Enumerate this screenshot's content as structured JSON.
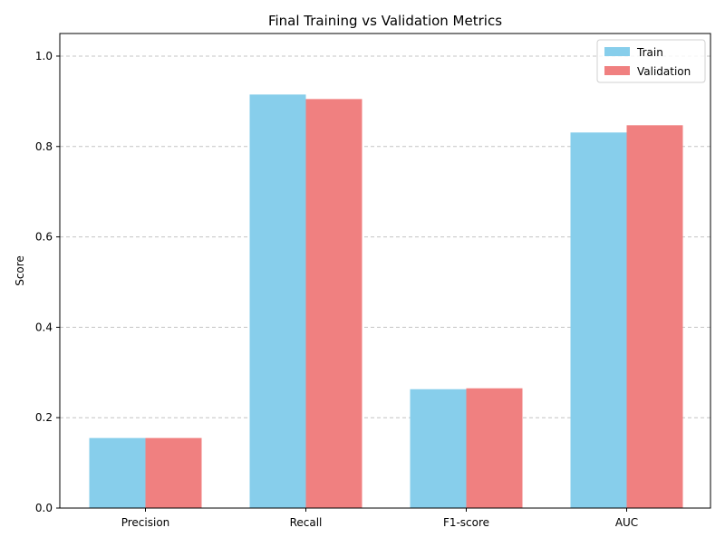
{
  "chart_data": {
    "type": "bar",
    "title": "Final Training vs Validation Metrics",
    "xlabel": "",
    "ylabel": "Score",
    "categories": [
      "Precision",
      "Recall",
      "F1-score",
      "AUC"
    ],
    "series": [
      {
        "name": "Train",
        "color": "#87ceeb",
        "values": [
          0.155,
          0.915,
          0.263,
          0.831
        ]
      },
      {
        "name": "Validation",
        "color": "#f08080",
        "values": [
          0.155,
          0.905,
          0.265,
          0.847
        ]
      }
    ],
    "ylim": [
      0,
      1.05
    ],
    "yticks": [
      "0.0",
      "0.2",
      "0.4",
      "0.6",
      "0.8",
      "1.0"
    ],
    "grid": "y-dashed",
    "legend_position": "top-right"
  }
}
